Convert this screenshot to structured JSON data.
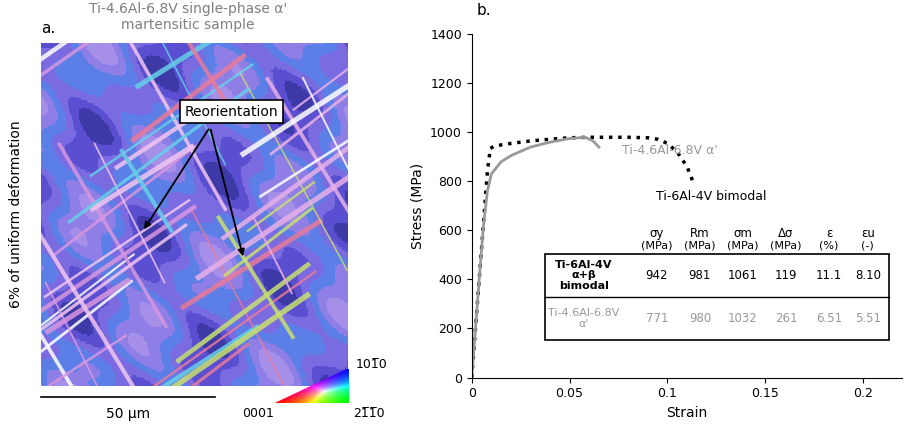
{
  "panel_a": {
    "label": "a.",
    "title": "Ti-4.6Al-6.8V single-phase α'\nmartensitic sample",
    "side_label": "6% of uniform deformation",
    "annotation": "Reorientation",
    "scale_bar": "50 µm",
    "ipf_legend": [
      "0001",
      "21̅1̅0",
      "101̅0"
    ]
  },
  "chart_data": {
    "type": "line",
    "panel_label": "b.",
    "xlabel": "Strain",
    "ylabel": "Stress (MPa)",
    "xlim": [
      0,
      0.22
    ],
    "xticks": [
      0,
      0.05,
      0.1,
      0.15,
      0.2
    ],
    "ylim": [
      0,
      1400
    ],
    "yticks": [
      0,
      200,
      400,
      600,
      800,
      1000,
      1200,
      1400
    ],
    "series": [
      {
        "name": "Ti-6Al-4V bimodal",
        "color": "#000000",
        "line_style": "dotted",
        "x": [
          0,
          0.002,
          0.004,
          0.006,
          0.008,
          0.0095,
          0.012,
          0.02,
          0.03,
          0.04,
          0.05,
          0.06,
          0.07,
          0.08,
          0.09,
          0.095,
          0.1,
          0.105,
          0.11,
          0.113
        ],
        "values": [
          0,
          210,
          420,
          630,
          840,
          935,
          945,
          955,
          965,
          972,
          978,
          980,
          980,
          980,
          978,
          972,
          955,
          920,
          860,
          800
        ]
      },
      {
        "name": "Ti-4.6Al-6.8V α'",
        "color": "#999999",
        "line_style": "solid",
        "x": [
          0,
          0.002,
          0.004,
          0.006,
          0.008,
          0.01,
          0.015,
          0.02,
          0.03,
          0.04,
          0.05,
          0.058,
          0.062,
          0.065
        ],
        "values": [
          0,
          210,
          420,
          620,
          760,
          830,
          880,
          905,
          940,
          960,
          975,
          980,
          965,
          940
        ]
      }
    ],
    "table": {
      "columns": [
        [
          "σy",
          "(MPa)"
        ],
        [
          "Rm",
          "(MPa)"
        ],
        [
          "σm",
          "(MPa)"
        ],
        [
          "Δσ",
          "(MPa)"
        ],
        [
          "ε",
          "(%)"
        ],
        [
          "εu",
          "(-)"
        ]
      ],
      "rows": [
        {
          "label": "Ti-6Al-4V\nα+β\nbimodal",
          "cells": [
            "942",
            "981",
            "1061",
            "119",
            "11.1",
            "8.10"
          ]
        },
        {
          "label": "Ti-4.6Al-6.8V\nα'",
          "cells": [
            "771",
            "980",
            "1032",
            "261",
            "6.51",
            "5.51"
          ]
        }
      ]
    }
  }
}
